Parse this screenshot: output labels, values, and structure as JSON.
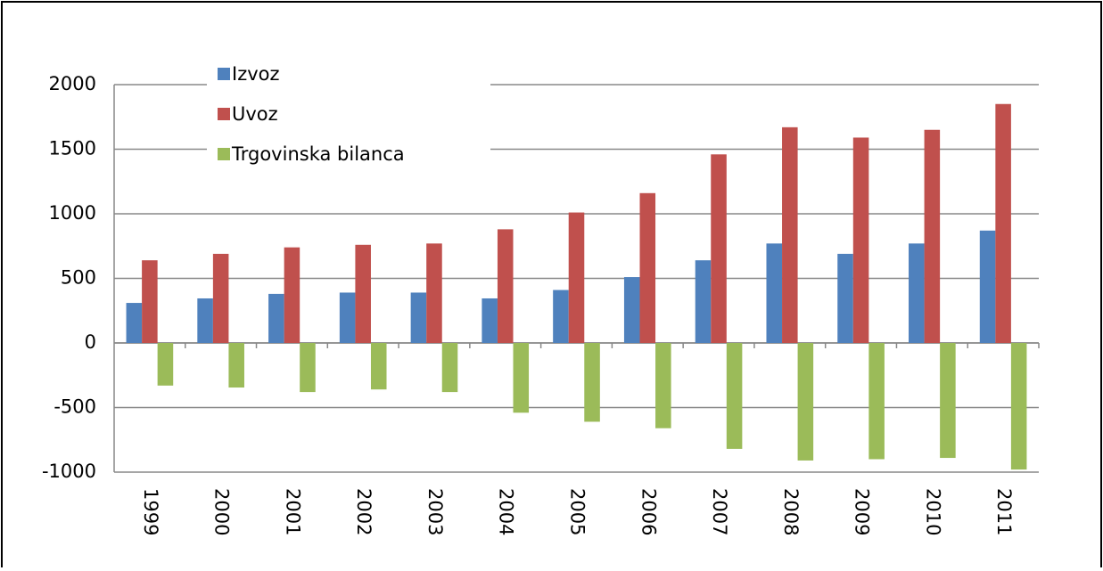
{
  "chart_data": {
    "type": "bar",
    "categories": [
      "1999",
      "2000",
      "2001",
      "2002",
      "2003",
      "2004",
      "2005",
      "2006",
      "2007",
      "2008",
      "2009",
      "2010",
      "2011"
    ],
    "series": [
      {
        "name": "Izvoz",
        "color": "#4f81bd",
        "values": [
          310,
          345,
          380,
          390,
          390,
          345,
          410,
          510,
          640,
          770,
          690,
          770,
          870
        ]
      },
      {
        "name": "Uvoz",
        "color": "#c0504d",
        "values": [
          640,
          690,
          740,
          760,
          770,
          880,
          1010,
          1160,
          1460,
          1670,
          1590,
          1650,
          1850
        ]
      },
      {
        "name": "Trgovinska bilanca",
        "color": "#9bbb59",
        "values": [
          -330,
          -345,
          -380,
          -360,
          -380,
          -540,
          -610,
          -660,
          -820,
          -910,
          -900,
          -890,
          -980
        ]
      }
    ],
    "ylim": [
      -1000,
      2000
    ],
    "yticks": [
      -1000,
      -500,
      0,
      500,
      1000,
      1500,
      2000
    ],
    "grid": true,
    "legend": "top-left"
  }
}
